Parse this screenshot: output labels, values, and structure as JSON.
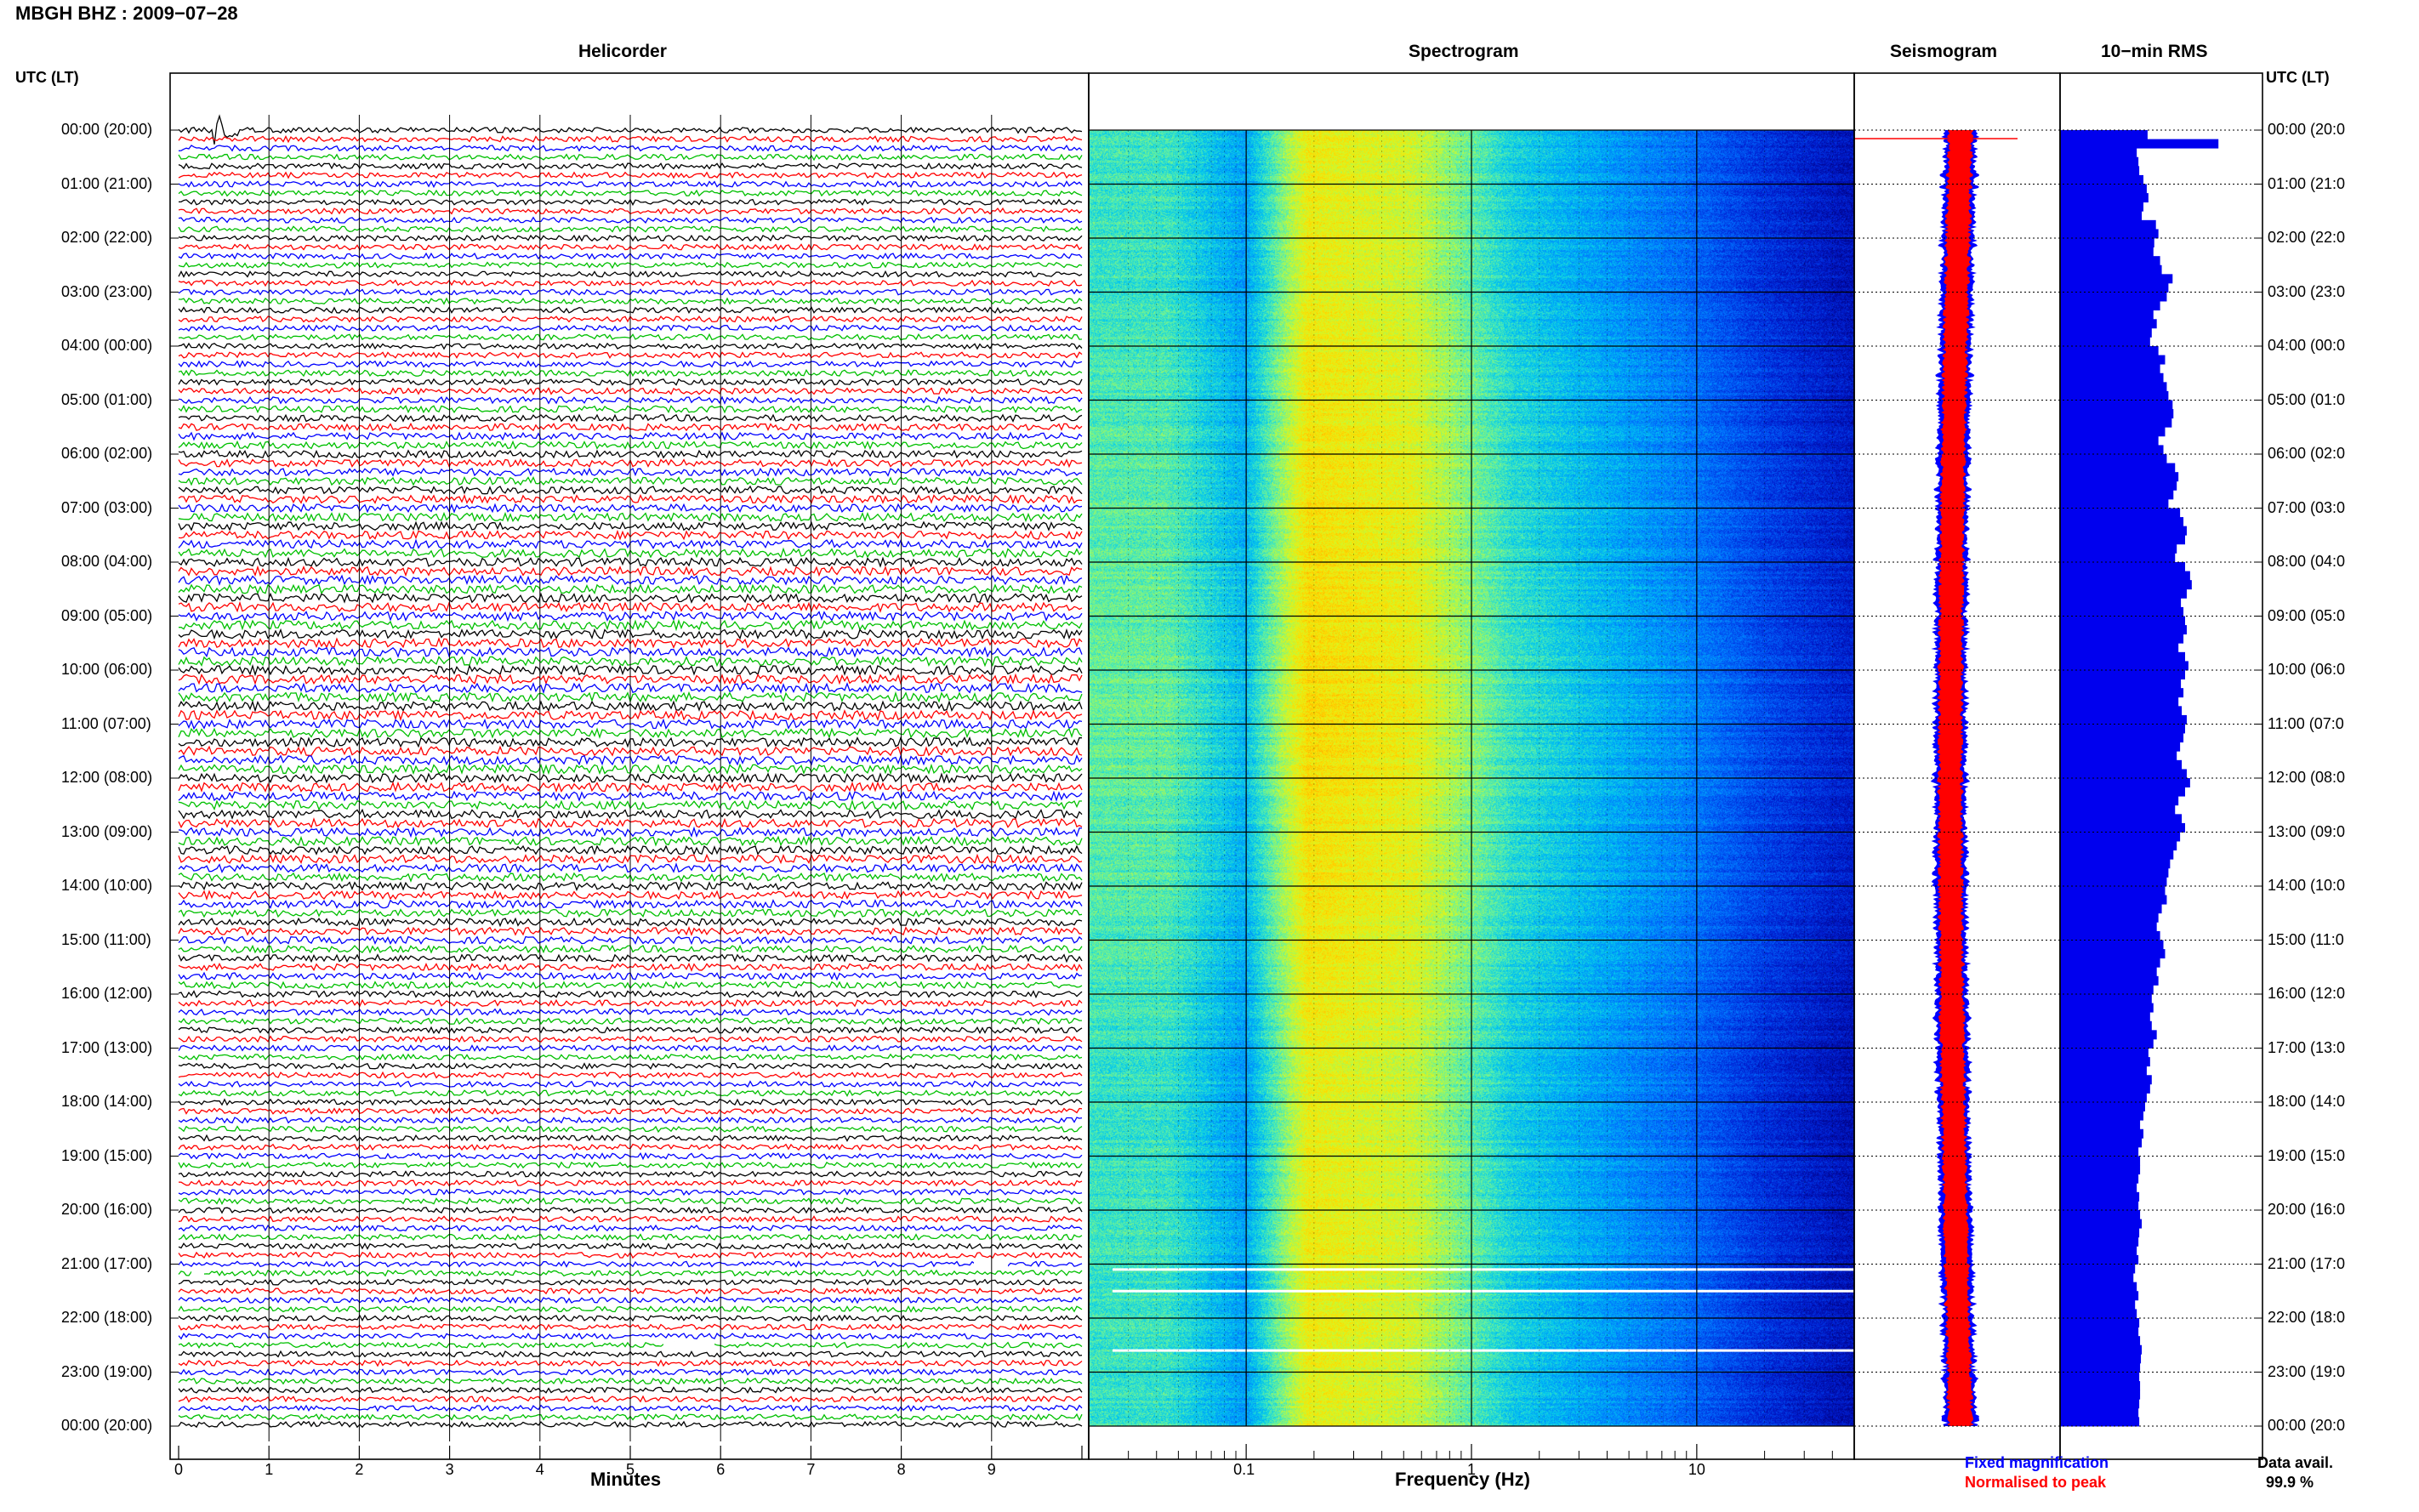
{
  "header": {
    "title": "MBGH BHZ : 2009−07−28",
    "utc_label_left": "UTC (LT)",
    "utc_label_right": "UTC (LT)"
  },
  "panels": {
    "helicorder": "Helicorder",
    "spectrogram": "Spectrogram",
    "seismogram": "Seismogram",
    "rms": "10−min RMS"
  },
  "axes": {
    "minutes_label": "Minutes",
    "frequency_label": "Frequency (Hz)",
    "minute_ticks": [
      "0",
      "1",
      "2",
      "3",
      "4",
      "5",
      "6",
      "7",
      "8",
      "9"
    ],
    "frequency_ticks": [
      "0.1",
      "1",
      "10"
    ]
  },
  "time_labels": [
    "00:00 (20:00)",
    "01:00 (21:00)",
    "02:00 (22:00)",
    "03:00 (23:00)",
    "04:00 (00:00)",
    "05:00 (01:00)",
    "06:00 (02:00)",
    "07:00 (03:00)",
    "08:00 (04:00)",
    "09:00 (05:00)",
    "10:00 (06:00)",
    "11:00 (07:00)",
    "12:00 (08:00)",
    "13:00 (09:00)",
    "14:00 (10:00)",
    "15:00 (11:00)",
    "16:00 (12:00)",
    "17:00 (13:00)",
    "18:00 (14:00)",
    "19:00 (15:00)",
    "20:00 (16:00)",
    "21:00 (17:00)",
    "22:00 (18:00)",
    "23:00 (19:00)",
    "00:00 (20:00)"
  ],
  "time_labels_right": [
    "00:00 (20:0",
    "01:00 (21:0",
    "02:00 (22:0",
    "03:00 (23:0",
    "04:00 (00:0",
    "05:00 (01:0",
    "06:00 (02:0",
    "07:00 (03:0",
    "08:00 (04:0",
    "09:00 (05:0",
    "10:00 (06:0",
    "11:00 (07:0",
    "12:00 (08:0",
    "13:00 (09:0",
    "14:00 (10:0",
    "15:00 (11:0",
    "16:00 (12:0",
    "17:00 (13:0",
    "18:00 (14:0",
    "19:00 (15:0",
    "20:00 (16:0",
    "21:00 (17:0",
    "22:00 (18:0",
    "23:00 (19:0",
    "00:00 (20:0"
  ],
  "legend": {
    "fixed": "Fixed magnification",
    "normalised": "Normalised to peak",
    "fixed_color": "#0000ff",
    "normalised_color": "#ff0000"
  },
  "availability": {
    "label": "Data avail.",
    "value": "99.9 %"
  },
  "colors": {
    "trace_cycle": [
      "#000000",
      "#ff0000",
      "#0000ff",
      "#00c000"
    ],
    "rms_bar": "#0000ee"
  },
  "chart_data": [
    {
      "type": "line",
      "title": "Helicorder",
      "xlabel": "Minutes",
      "xlim": [
        0,
        10
      ],
      "rows_per_hour": 6,
      "hours": 24,
      "event": {
        "hour": 0,
        "minute": 0.4,
        "description": "large transient in first trace"
      }
    },
    {
      "type": "heatmap",
      "title": "Spectrogram",
      "xlabel": "Frequency (Hz)",
      "x_scale": "log",
      "xlim": [
        0.02,
        50
      ],
      "data_gaps_utc_hours": [
        21.1,
        21.5,
        22.6
      ]
    },
    {
      "type": "line",
      "title": "Seismogram",
      "series": [
        {
          "name": "Fixed magnification",
          "color": "#0000ff"
        },
        {
          "name": "Normalised to peak",
          "color": "#ff0000"
        }
      ]
    },
    {
      "type": "bar",
      "title": "10−min RMS",
      "values": [
        105,
        190,
        92,
        94,
        95,
        100,
        104,
        106,
        100,
        98,
        115,
        118,
        113,
        112,
        120,
        122,
        135,
        130,
        128,
        120,
        112,
        116,
        110,
        108,
        118,
        126,
        120,
        124,
        128,
        130,
        135,
        136,
        134,
        126,
        118,
        124,
        128,
        138,
        142,
        140,
        136,
        130,
        144,
        148,
        152,
        150,
        140,
        138,
        150,
        156,
        158,
        152,
        145,
        148,
        150,
        152,
        148,
        142,
        150,
        154,
        150,
        145,
        148,
        142,
        146,
        152,
        150,
        148,
        144,
        140,
        146,
        152,
        156,
        150,
        142,
        138,
        146,
        150,
        144,
        140,
        136,
        132,
        130,
        128,
        126,
        128,
        122,
        118,
        116,
        120,
        124,
        126,
        120,
        116,
        118,
        112,
        110,
        112,
        108,
        110,
        116,
        112,
        106,
        108,
        104,
        110,
        108,
        104,
        102,
        100,
        96,
        100,
        98,
        94,
        96,
        96,
        94,
        92,
        95,
        94,
        96,
        98,
        95,
        94,
        92,
        94,
        90,
        88,
        92,
        94,
        90,
        92,
        95,
        94,
        96,
        98,
        97,
        96,
        95,
        96,
        96,
        95,
        94,
        95
      ]
    }
  ]
}
